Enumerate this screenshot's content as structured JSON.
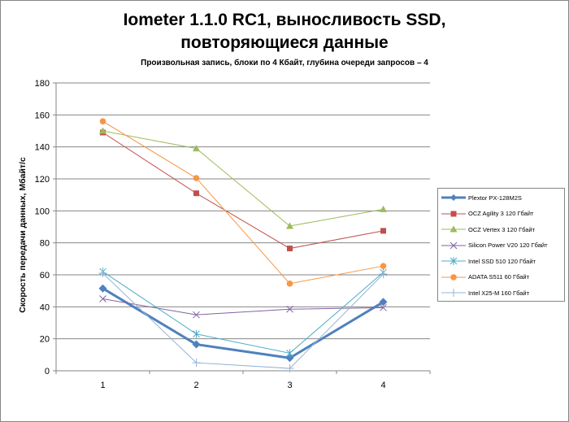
{
  "chart_data": {
    "type": "line",
    "title": "Iometer 1.1.0 RC1, выносливость SSD,",
    "title_line2": "повторяющиеся данные",
    "subtitle": "Произвольная  запись, блоки по 4 Кбайт, глубина очереди запросов – 4",
    "xlabel": "",
    "ylabel": "Скорость  передачи данных, Мбайт/с",
    "ylim": [
      0,
      180
    ],
    "yticks": [
      "0",
      "20",
      "40",
      "60",
      "80",
      "100",
      "120",
      "140",
      "160",
      "180"
    ],
    "categories": [
      "1",
      "2",
      "3",
      "4"
    ],
    "grid": true,
    "legend_placement": "right",
    "series": [
      {
        "name": "Plextor PX-128M2S",
        "color": "#4F81BD",
        "marker": "diamond",
        "width": 3,
        "values": [
          51.5,
          16.5,
          8,
          43
        ]
      },
      {
        "name": "OCZ Agility  3 120 Гбайт",
        "color": "#C0504D",
        "marker": "square",
        "width": 1,
        "values": [
          149,
          111,
          76.5,
          87.5
        ]
      },
      {
        "name": "OCZ Vertex  3 120 Гбайт",
        "color": "#9BBB59",
        "marker": "triangle",
        "width": 1,
        "values": [
          150,
          139,
          90.5,
          101
        ]
      },
      {
        "name": "Silicon  Power  V20 120 Гбайт",
        "color": "#8064A2",
        "marker": "x",
        "width": 1,
        "values": [
          45,
          35,
          38.5,
          39.5
        ]
      },
      {
        "name": "Intel  SSD 510 120 Гбайт",
        "color": "#4BACC6",
        "marker": "star",
        "width": 1,
        "values": [
          62,
          23,
          11,
          61.5
        ]
      },
      {
        "name": "ADATA  S511 60 Гбайт",
        "color": "#F79646",
        "marker": "circle",
        "width": 1,
        "values": [
          156,
          120.5,
          54.5,
          65.5
        ]
      },
      {
        "name": "Intel  X25-M 160 Гбайт",
        "color": "#95B3D7",
        "marker": "plus",
        "width": 1,
        "values": [
          61,
          5,
          1.5,
          60.5
        ]
      }
    ]
  }
}
